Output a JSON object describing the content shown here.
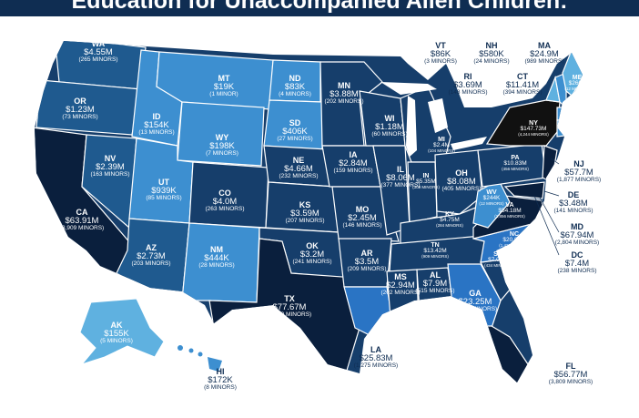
{
  "title": "Education for Unaccompanied Alien Children:",
  "colors": {
    "title_bg": "#0f2d52",
    "darkest": "#0a1f3d",
    "dark": "#163e6b",
    "mid": "#1f5a8f",
    "light": "#3d8fd0",
    "lightest": "#5fb1e0",
    "black": "#111111",
    "hi": "#2a74c4"
  },
  "states": {
    "WA": {
      "abbr": "WA",
      "amount": "$4.55M",
      "minors": "(265 MINORS)"
    },
    "OR": {
      "abbr": "OR",
      "amount": "$1.23M",
      "minors": "(73 MINORS)"
    },
    "CA": {
      "abbr": "CA",
      "amount": "$63.91M",
      "minors": "(3,909 MINORS)"
    },
    "NV": {
      "abbr": "NV",
      "amount": "$2.39M",
      "minors": "(163 MINORS)"
    },
    "ID": {
      "abbr": "ID",
      "amount": "$154K",
      "minors": "(13 MINORS)"
    },
    "MT": {
      "abbr": "MT",
      "amount": "$19K",
      "minors": "(1 MINOR)"
    },
    "WY": {
      "abbr": "WY",
      "amount": "$198K",
      "minors": "(7 MINORS)"
    },
    "UT": {
      "abbr": "UT",
      "amount": "$939K",
      "minors": "(85 MINORS)"
    },
    "AZ": {
      "abbr": "AZ",
      "amount": "$2.73M",
      "minors": "(203 MINORS)"
    },
    "CO": {
      "abbr": "CO",
      "amount": "$4.0M",
      "minors": "(263 MINORS)"
    },
    "NM": {
      "abbr": "NM",
      "amount": "$444K",
      "minors": "(28 MINORS)"
    },
    "ND": {
      "abbr": "ND",
      "amount": "$83K",
      "minors": "(4 MINORS)"
    },
    "SD": {
      "abbr": "SD",
      "amount": "$406K",
      "minors": "(27 MINORS)"
    },
    "NE": {
      "abbr": "NE",
      "amount": "$4.66M",
      "minors": "(232 MINORS)"
    },
    "KS": {
      "abbr": "KS",
      "amount": "$3.59M",
      "minors": "(207 MINORS)"
    },
    "OK": {
      "abbr": "OK",
      "amount": "$3.2M",
      "minors": "(241 MINORS)"
    },
    "TX": {
      "abbr": "TX",
      "amount": "$77.67M",
      "minors": "(5,280 MINORS)"
    },
    "MN": {
      "abbr": "MN",
      "amount": "$3.88M",
      "minors": "(202 MINORS)"
    },
    "IA": {
      "abbr": "IA",
      "amount": "$2.84M",
      "minors": "(159 MINORS)"
    },
    "MO": {
      "abbr": "MO",
      "amount": "$2.45M",
      "minors": "(146 MINORS)"
    },
    "AR": {
      "abbr": "AR",
      "amount": "$3.5M",
      "minors": "(209 MINORS)"
    },
    "LA": {
      "abbr": "LA",
      "amount": "$25.83M",
      "minors": "(1,275 MINORS)"
    },
    "WI": {
      "abbr": "WI",
      "amount": "$1.18M",
      "minors": "(60 MINORS)"
    },
    "IL": {
      "abbr": "IL",
      "amount": "$8.06M",
      "minors": "(377 MINORS)"
    },
    "MI": {
      "abbr": "MI",
      "amount": "$2.4M",
      "minors": "(104 MINORS)"
    },
    "IN": {
      "abbr": "IN",
      "amount": "$5.35M",
      "minors": "(309 MINORS)"
    },
    "OH": {
      "abbr": "OH",
      "amount": "$8.08M",
      "minors": "(405 MINORS)"
    },
    "KY": {
      "abbr": "KY",
      "amount": "$4.75M",
      "minors": "(284 MINORS)"
    },
    "TN": {
      "abbr": "TN",
      "amount": "$13.42M",
      "minors": "(909 MINORS)"
    },
    "MS": {
      "abbr": "MS",
      "amount": "$2.94M",
      "minors": "(202 MINORS)"
    },
    "AL": {
      "abbr": "AL",
      "amount": "$7.9M",
      "minors": "(515 MINORS)"
    },
    "GA": {
      "abbr": "GA",
      "amount": "$23.25M",
      "minors": "(1,412 MINORS)"
    },
    "FL": {
      "abbr": "FL",
      "amount": "$56.77M",
      "minors": "(3,809 MINORS)"
    },
    "SC": {
      "abbr": "SC",
      "amount": "$7.07M",
      "minors": "(434 MINORS)"
    },
    "NC": {
      "abbr": "NC",
      "amount": "$20.86M",
      "minors": "(1,429 MINORS)"
    },
    "VA": {
      "abbr": "VA",
      "amount": "$54.18M",
      "minors": "(2,856 MINORS)"
    },
    "WV": {
      "abbr": "WV",
      "amount": "$244K",
      "minors": "(12 MINORS)"
    },
    "PA": {
      "abbr": "PA",
      "amount": "$10.83M",
      "minors": "(456 MINORS)"
    },
    "NY": {
      "abbr": "NY",
      "amount": "$147.73M",
      "minors": "(4,244 MINORS)"
    },
    "ME": {
      "abbr": "ME",
      "amount": "$260K",
      "minors": "(12 MINORS)"
    },
    "AK": {
      "abbr": "AK",
      "amount": "$155K",
      "minors": "(5 MINORS)"
    },
    "HI": {
      "abbr": "HI",
      "amount": "$172K",
      "minors": "(8 MINORS)"
    },
    "VT": {
      "abbr": "VT",
      "amount": "$86K",
      "minors": "(3 MINORS)"
    },
    "NH": {
      "abbr": "NH",
      "amount": "$580K",
      "minors": "(24 MINORS)"
    },
    "MA": {
      "abbr": "MA",
      "amount": "$24.9M",
      "minors": "(989 MINORS)"
    },
    "RI": {
      "abbr": "RI",
      "amount": "$3.69M",
      "minors": "(148 MINORS)"
    },
    "CT": {
      "abbr": "CT",
      "amount": "$11.41M",
      "minors": "(394 MINORS)"
    },
    "NJ": {
      "abbr": "NJ",
      "amount": "$57.7M",
      "minors": "(1,877 MINORS)"
    },
    "DE": {
      "abbr": "DE",
      "amount": "$3.48M",
      "minors": "(141 MINORS)"
    },
    "MD": {
      "abbr": "MD",
      "amount": "$67.94M",
      "minors": "(2,804 MINORS)"
    },
    "DC": {
      "abbr": "DC",
      "amount": "$7.4M",
      "minors": "(238 MINORS)"
    }
  }
}
